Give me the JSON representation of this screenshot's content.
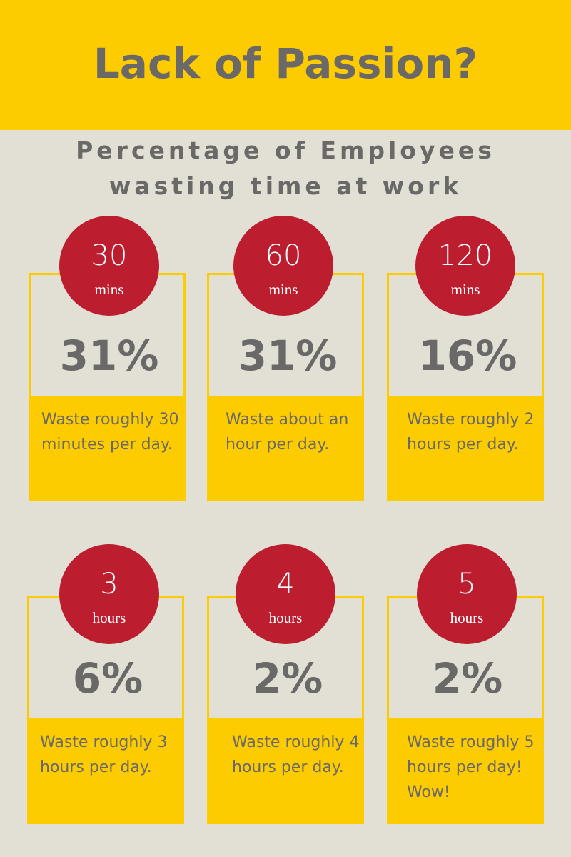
{
  "header": {
    "title": "Lack of Passion?"
  },
  "subtitle": {
    "line1": "Percentage of Employees",
    "line2": "wasting time at work"
  },
  "cards": [
    {
      "amount": "30",
      "unit": "mins",
      "percent": "31%",
      "desc": "Waste roughly 30 minutes per day."
    },
    {
      "amount": "60",
      "unit": "mins",
      "percent": "31%",
      "desc": "Waste about an hour per day."
    },
    {
      "amount": "120",
      "unit": "mins",
      "percent": "16%",
      "desc": "Waste roughly 2 hours per day."
    },
    {
      "amount": "3",
      "unit": "hours",
      "percent": "6%",
      "desc": "Waste roughly 3 hours per day."
    },
    {
      "amount": "4",
      "unit": "hours",
      "percent": "2%",
      "desc": "Waste roughly 4 hours per day."
    },
    {
      "amount": "5",
      "unit": "hours",
      "percent": "2%",
      "desc": "Waste roughly 5 hours per day! Wow!"
    }
  ],
  "colors": {
    "background": "#e2dfd4",
    "accent_yellow": "#fccc00",
    "badge_red": "#bc1d2f",
    "text_gray": "#6b6868"
  }
}
